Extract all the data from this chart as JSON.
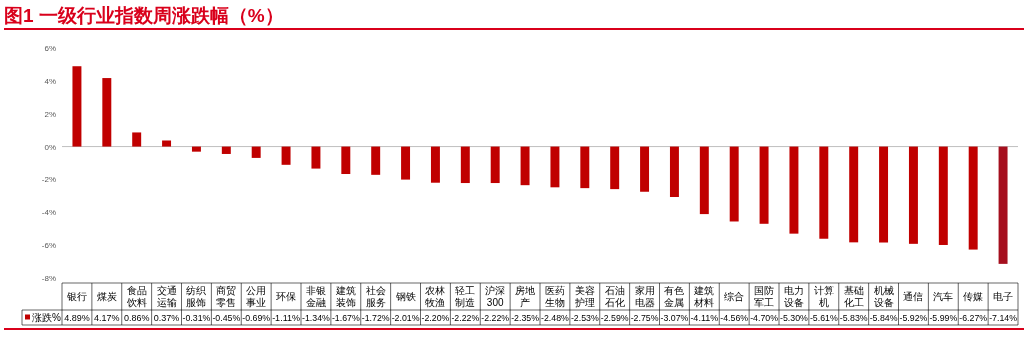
{
  "chart_data": {
    "type": "bar",
    "title": "图1  一级行业指数周涨跌幅（%）",
    "categories": [
      "银行",
      "煤炭",
      "食品饮料",
      "交通运输",
      "纺织服饰",
      "商贸零售",
      "公用事业",
      "环保",
      "非银金融",
      "建筑装饰",
      "社会服务",
      "钢铁",
      "农林牧渔",
      "轻工制造",
      "沪深300",
      "房地产",
      "医药生物",
      "美容护理",
      "石油石化",
      "家用电器",
      "有色金属",
      "建筑材料",
      "综合",
      "国防军工",
      "电力设备",
      "计算机",
      "基础化工",
      "机械设备",
      "通信",
      "汽车",
      "传媒",
      "电子"
    ],
    "series": [
      {
        "name": "涨跌%",
        "color": "#c00000",
        "values": [
          4.89,
          4.17,
          0.86,
          0.37,
          -0.31,
          -0.45,
          -0.69,
          -1.11,
          -1.34,
          -1.67,
          -1.72,
          -2.01,
          -2.2,
          -2.22,
          -2.22,
          -2.35,
          -2.48,
          -2.53,
          -2.59,
          -2.75,
          -3.07,
          -4.11,
          -4.56,
          -4.7,
          -5.3,
          -5.61,
          -5.83,
          -5.84,
          -5.92,
          -5.99,
          -6.27,
          -7.14
        ],
        "colors": [
          "#c00000",
          "#c00000",
          "#c00000",
          "#c00000",
          "#c00000",
          "#c00000",
          "#c00000",
          "#c00000",
          "#c00000",
          "#c00000",
          "#c00000",
          "#c00000",
          "#c00000",
          "#c00000",
          "#c00000",
          "#c00000",
          "#c00000",
          "#c00000",
          "#c00000",
          "#c00000",
          "#c00000",
          "#c00000",
          "#c00000",
          "#c00000",
          "#c00000",
          "#c00000",
          "#c00000",
          "#c00000",
          "#c00000",
          "#c00000",
          "#c00000",
          "#a50f1e"
        ],
        "value_labels": [
          "4.89%",
          "4.17%",
          "0.86%",
          "0.37%",
          "-0.31%",
          "-0.45%",
          "-0.69%",
          "-1.11%",
          "-1.34%",
          "-1.67%",
          "-1.72%",
          "-2.01%",
          "-2.20%",
          "-2.22%",
          "-2.22%",
          "-2.35%",
          "-2.48%",
          "-2.53%",
          "-2.59%",
          "-2.75%",
          "-3.07%",
          "-4.11%",
          "-4.56%",
          "-4.70%",
          "-5.30%",
          "-5.61%",
          "-5.83%",
          "-5.84%",
          "-5.92%",
          "-5.99%",
          "-6.27%",
          "-7.14%"
        ]
      }
    ],
    "ylim": [
      -8,
      6
    ],
    "yticks": [
      {
        "value": -8,
        "label": "-8%"
      },
      {
        "value": -6,
        "label": "-6%"
      },
      {
        "value": -4,
        "label": "-4%"
      },
      {
        "value": -2,
        "label": "-2%"
      },
      {
        "value": 0,
        "label": "0%"
      },
      {
        "value": 2,
        "label": "2%"
      },
      {
        "value": 4,
        "label": "4%"
      },
      {
        "value": 6,
        "label": "6%"
      }
    ],
    "legend": "bottom"
  }
}
